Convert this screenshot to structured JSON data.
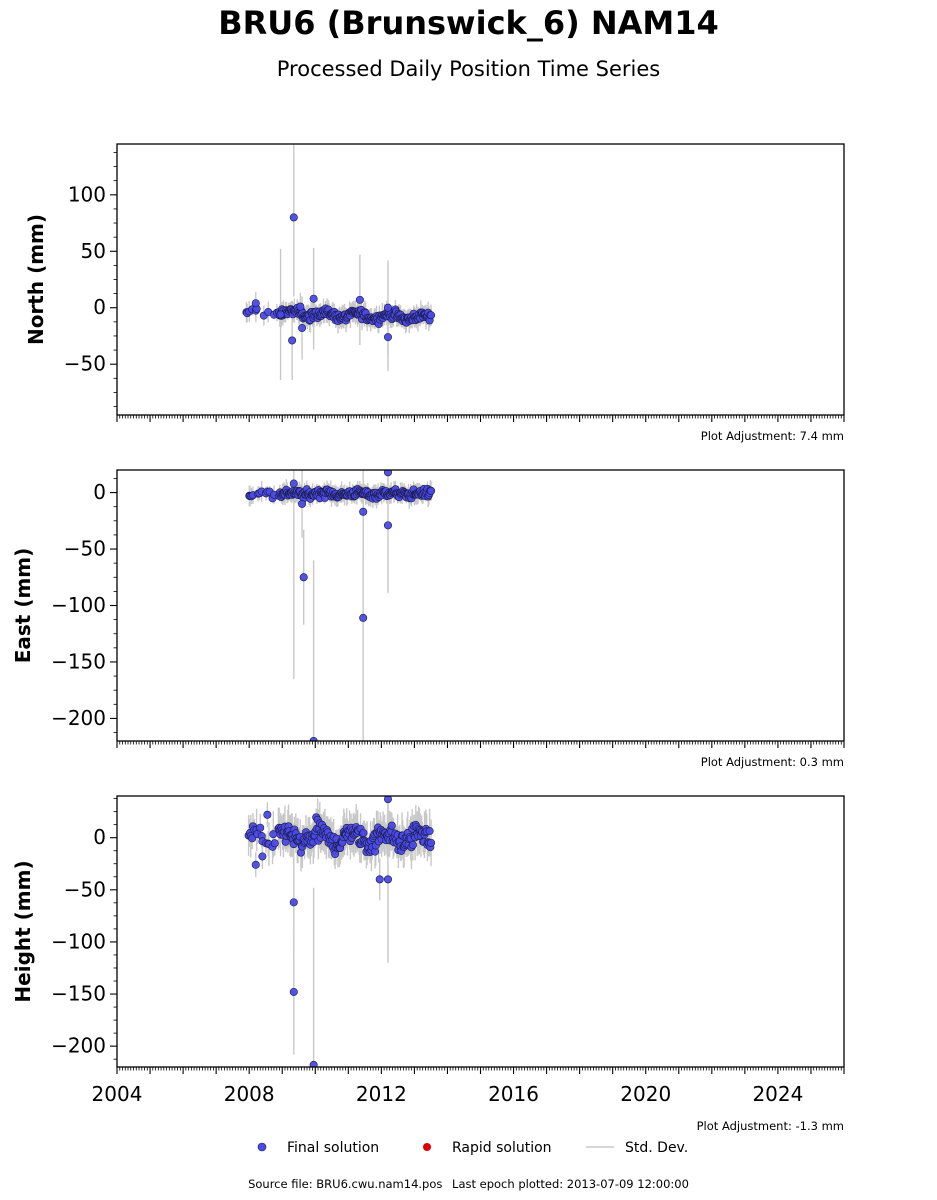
{
  "title": "BRU6 (Brunswick_6) NAM14",
  "subtitle": "Processed Daily Position Time Series",
  "footer": {
    "source": "Source file: BRU6.cwu.nam14.pos",
    "last_epoch": "Last epoch plotted: 2013-07-09 12:00:00"
  },
  "legend": {
    "final": "Final solution",
    "rapid": "Rapid solution",
    "std": "Std. Dev."
  },
  "colors": {
    "final": "#4a4ae6",
    "final_edge": "#1a1a44",
    "rapid": "#dd0000",
    "std": "#c8c8c8"
  },
  "chart_data": [
    {
      "type": "scatter",
      "ylabel": "North (mm)",
      "xlim": [
        2004,
        2026
      ],
      "ylim": [
        -95,
        145
      ],
      "yticks": [
        -50,
        0,
        50,
        100
      ],
      "adjustment": "Plot Adjustment: 7.4 mm",
      "outliers": [
        {
          "x": 2009.35,
          "y": 80,
          "err": 70
        },
        {
          "x": 2009.3,
          "y": -29,
          "err": 35
        },
        {
          "x": 2009.6,
          "y": -18,
          "err": 28
        },
        {
          "x": 2009.55,
          "y": 1,
          "err": 12
        },
        {
          "x": 2009.95,
          "y": 8,
          "err": 45
        },
        {
          "x": 2011.35,
          "y": 7,
          "err": 40
        },
        {
          "x": 2012.2,
          "y": -26,
          "err": 30
        },
        {
          "x": 2012.2,
          "y": 0,
          "err": 42
        },
        {
          "x": 2008.2,
          "y": 4,
          "err": 10
        },
        {
          "x": 2008.95,
          "y": -6,
          "err": 58
        }
      ]
    },
    {
      "type": "scatter",
      "ylabel": "East (mm)",
      "xlim": [
        2004,
        2026
      ],
      "ylim": [
        -220,
        20
      ],
      "yticks": [
        -200,
        -150,
        -100,
        -50,
        0
      ],
      "adjustment": "Plot Adjustment: 0.3 mm",
      "outliers": [
        {
          "x": 2009.65,
          "y": -75,
          "err": 42
        },
        {
          "x": 2011.45,
          "y": -111,
          "err": 115
        },
        {
          "x": 2009.95,
          "y": -220,
          "err": 160
        },
        {
          "x": 2012.2,
          "y": -29,
          "err": 60
        },
        {
          "x": 2012.2,
          "y": 18,
          "err": 20
        },
        {
          "x": 2011.45,
          "y": -17,
          "err": 40
        },
        {
          "x": 2009.35,
          "y": 8,
          "err": 173
        },
        {
          "x": 2009.6,
          "y": -10,
          "err": 30
        }
      ]
    },
    {
      "type": "scatter",
      "ylabel": "Height (mm)",
      "xlim": [
        2004,
        2026
      ],
      "ylim": [
        -220,
        40
      ],
      "yticks": [
        -200,
        -150,
        -100,
        -50,
        0
      ],
      "xticks": [
        2004,
        2008,
        2012,
        2016,
        2020,
        2024
      ],
      "adjustment": "Plot Adjustment: -1.3 mm",
      "outliers": [
        {
          "x": 2009.35,
          "y": -148,
          "err": 60
        },
        {
          "x": 2009.35,
          "y": -62,
          "err": 50
        },
        {
          "x": 2009.95,
          "y": -218,
          "err": 170
        },
        {
          "x": 2012.2,
          "y": 37,
          "err": 30
        },
        {
          "x": 2012.2,
          "y": -40,
          "err": 80
        },
        {
          "x": 2008.2,
          "y": -26,
          "err": 12
        },
        {
          "x": 2008.4,
          "y": -18,
          "err": 12
        },
        {
          "x": 2008.55,
          "y": 22,
          "err": 12
        },
        {
          "x": 2011.95,
          "y": -40,
          "err": 20
        }
      ]
    }
  ]
}
